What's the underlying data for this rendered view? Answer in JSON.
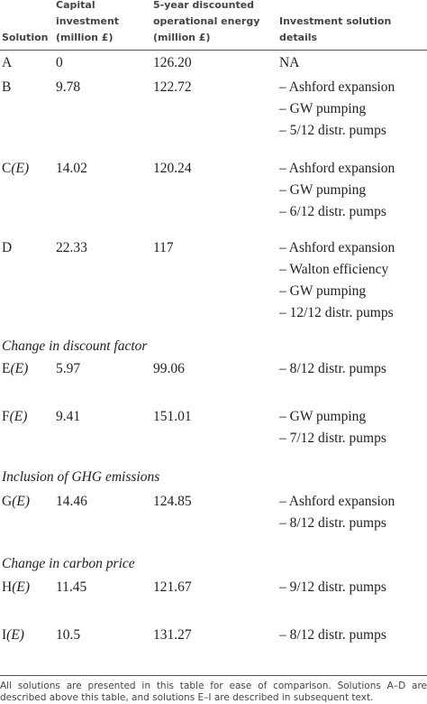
{
  "header": {
    "columns": [
      "Solution",
      "Capital investment (million £)",
      "5-year discounted operational energy (million £)",
      "Investment solution details"
    ]
  },
  "table": {
    "rows": [
      {
        "solution": "A",
        "capital": "0",
        "energy": "126.20",
        "details": [
          "NA"
        ]
      },
      {
        "solution": "B",
        "capital": "9.78",
        "energy": "122.72",
        "details": [
          "– Ashford expansion",
          "– GW pumping",
          "– 5/12 distr. pumps"
        ]
      },
      {
        "solution": "C",
        "variant": "(E)",
        "capital": "14.02",
        "energy": "120.24",
        "details": [
          "– Ashford expansion",
          "– GW pumping",
          "– 6/12 distr. pumps"
        ]
      },
      {
        "solution": "D",
        "capital": "22.33",
        "energy": "117",
        "details": [
          "– Ashford expansion",
          "– Walton efficiency",
          "– GW pumping",
          "– 12/12 distr. pumps"
        ]
      },
      {
        "section": "Change in discount factor"
      },
      {
        "solution": "E",
        "variant": "(E)",
        "capital": "5.97",
        "energy": "99.06",
        "details": [
          "– 8/12 distr. pumps"
        ]
      },
      {
        "solution": "F",
        "variant": "(E)",
        "capital": "9.41",
        "energy": "151.01",
        "details": [
          "– GW pumping",
          "– 7/12 distr. pumps"
        ]
      },
      {
        "section": "Inclusion of GHG emissions"
      },
      {
        "solution": "G",
        "variant": "(E)",
        "capital": "14.46",
        "energy": "124.85",
        "details": [
          "– Ashford expansion",
          "– 8/12 distr. pumps"
        ]
      },
      {
        "section": "Change in carbon price"
      },
      {
        "solution": "H",
        "variant": "(E)",
        "capital": "11.45",
        "energy": "121.67",
        "details": [
          "– 9/12 distr. pumps"
        ]
      },
      {
        "solution": "I",
        "variant": "(E)",
        "capital": "10.5",
        "energy": "131.27",
        "details": [
          "– 8/12 distr. pumps"
        ]
      }
    ]
  },
  "footnote": "All solutions are presented in this table for ease of comparison. Solutions A–D are described above this table, and solutions E–I are described in subsequent text."
}
